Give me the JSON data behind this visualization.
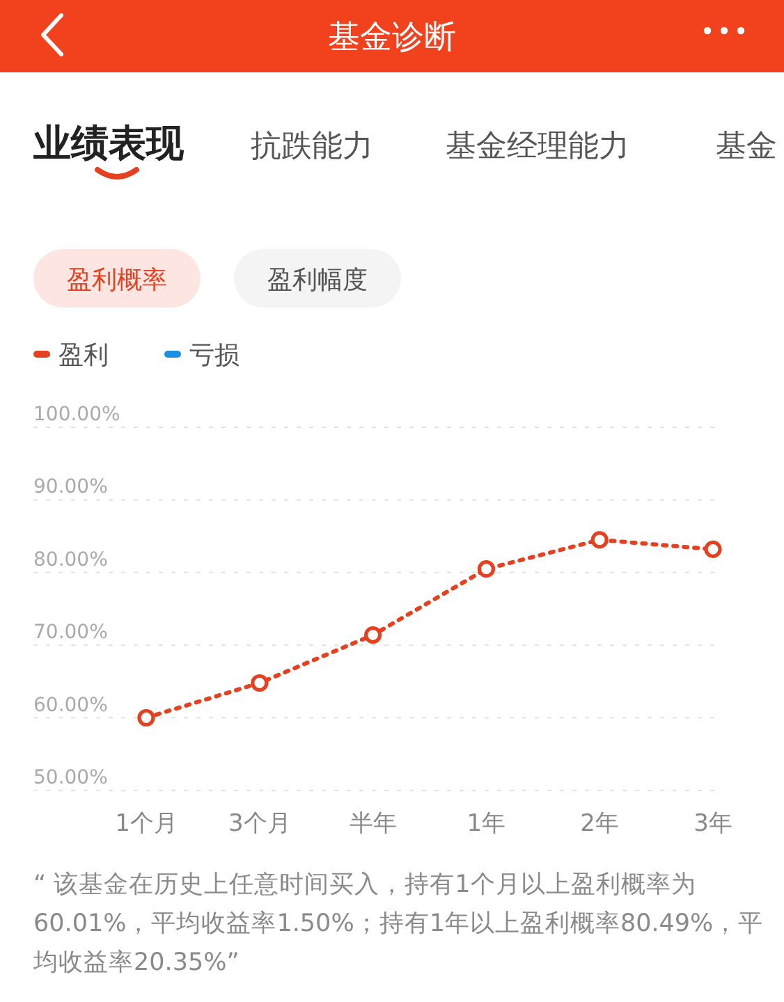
{
  "chart_data": {
    "type": "line",
    "title": "基金诊断",
    "categories": [
      "1个月",
      "3个月",
      "半年",
      "1年",
      "2年",
      "3年"
    ],
    "series": [
      {
        "name": "盈利",
        "color": "#e5401f",
        "values": [
          60.01,
          64.8,
          71.4,
          80.49,
          84.5,
          83.2
        ]
      },
      {
        "name": "亏损",
        "color": "#1a8fe3",
        "values": [
          null,
          null,
          null,
          null,
          null,
          null
        ]
      }
    ],
    "ylim": [
      50,
      100
    ],
    "yticks": [
      {
        "value": 50,
        "label": "50.00%"
      },
      {
        "value": 60,
        "label": "60.00%"
      },
      {
        "value": 70,
        "label": "70.00%"
      },
      {
        "value": 80,
        "label": "80.00%"
      },
      {
        "value": 90,
        "label": "90.00%"
      },
      {
        "value": 100,
        "label": "100.00%"
      }
    ],
    "grid": "y",
    "legend": "top left",
    "marker": "circle",
    "line_style": "dotted",
    "annotations": [
      "业绩表现",
      "抗跌能力",
      "基金经理能力",
      "基金",
      "盈利概率",
      "盈利幅度",
      "“ 该基金在历史上任意时间买入，持有1个月以上盈利概率为60.01%，平均收益率1.50%；持有1年以上盈利概率80.49%，平均收益率20.35%”"
    ]
  }
}
